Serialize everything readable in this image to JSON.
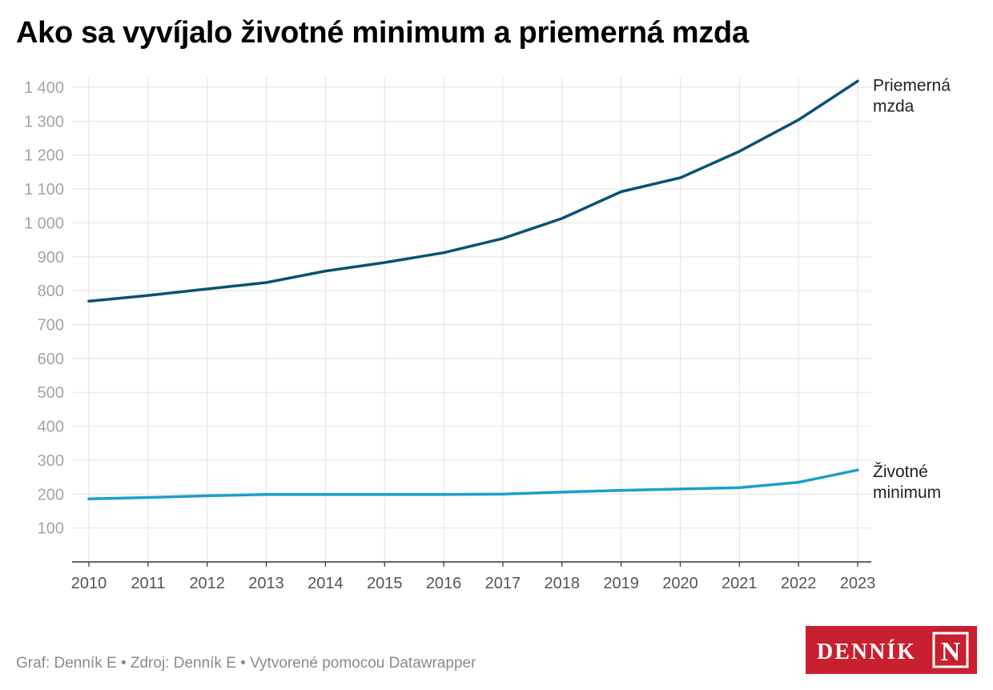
{
  "title": "Ako sa vyvíjalo životné minimum a priemerná mzda",
  "footer": "Graf: Denník E • Zdroj: Denník E • Vytvorené pomocou Datawrapper",
  "logo": {
    "text": "DENNÍK",
    "mark": "N",
    "color": "#c8202f"
  },
  "chart_data": {
    "type": "line",
    "title": "Ako sa vyvíjalo životné minimum a priemerná mzda",
    "x": [
      2010,
      2011,
      2012,
      2013,
      2014,
      2015,
      2016,
      2017,
      2018,
      2019,
      2020,
      2021,
      2022,
      2023
    ],
    "y_ticks": [
      100,
      200,
      300,
      400,
      500,
      600,
      700,
      800,
      900,
      1000,
      1100,
      1200,
      1300,
      1400
    ],
    "y_tick_labels": [
      "100",
      "200",
      "300",
      "400",
      "500",
      "600",
      "700",
      "800",
      "900",
      "1 000",
      "1 100",
      "1 200",
      "1 300",
      "1 400"
    ],
    "ylim": [
      0,
      1400
    ],
    "grid": true,
    "series": [
      {
        "name": "Priemerná mzda",
        "label_lines": [
          "Priemerná",
          "mzda"
        ],
        "color": "#0a5175",
        "values": [
          769,
          786,
          805,
          824,
          858,
          883,
          912,
          954,
          1013,
          1092,
          1133,
          1211,
          1304,
          1418
        ]
      },
      {
        "name": "Životné minimum",
        "label_lines": [
          "Životné",
          "minimum"
        ],
        "color": "#1c9fca",
        "values": [
          186,
          190,
          195,
          199,
          199,
          199,
          199,
          200,
          206,
          211,
          215,
          219,
          235,
          271
        ]
      }
    ]
  }
}
